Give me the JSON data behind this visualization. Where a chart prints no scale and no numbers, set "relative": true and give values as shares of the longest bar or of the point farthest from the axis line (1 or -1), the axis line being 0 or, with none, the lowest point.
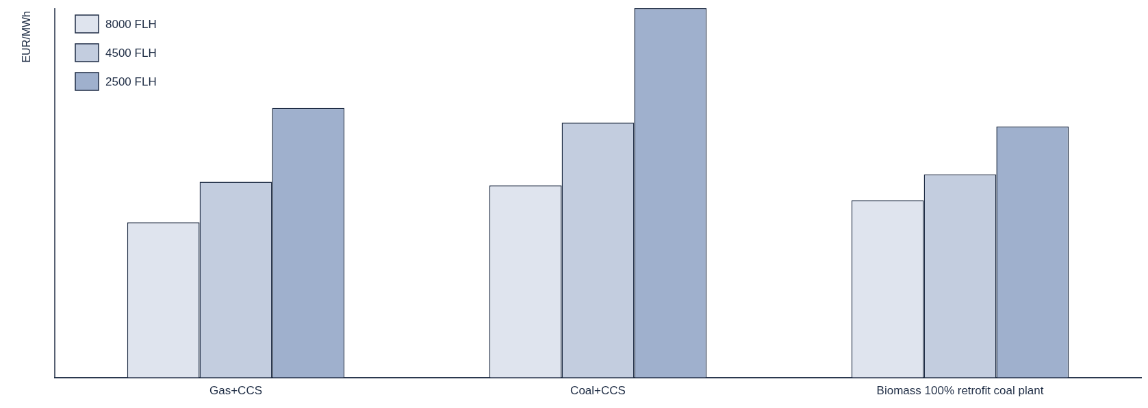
{
  "chart_data": {
    "type": "bar",
    "relative": true,
    "ylabel": "EUR/MWh",
    "categories": [
      "Gas+CCS",
      "Coal+CCS",
      "Biomass 100% retrofit coal plant"
    ],
    "series": [
      {
        "name": "8000 FLH",
        "color": "#dfe4ee",
        "values": [
          0.42,
          0.52,
          0.48
        ]
      },
      {
        "name": "4500 FLH",
        "color": "#c3cddf",
        "values": [
          0.53,
          0.69,
          0.55
        ]
      },
      {
        "name": "2500 FLH",
        "color": "#9fb0cd",
        "values": [
          0.73,
          1,
          0.68
        ]
      }
    ],
    "legend": "top left",
    "grid": false
  }
}
